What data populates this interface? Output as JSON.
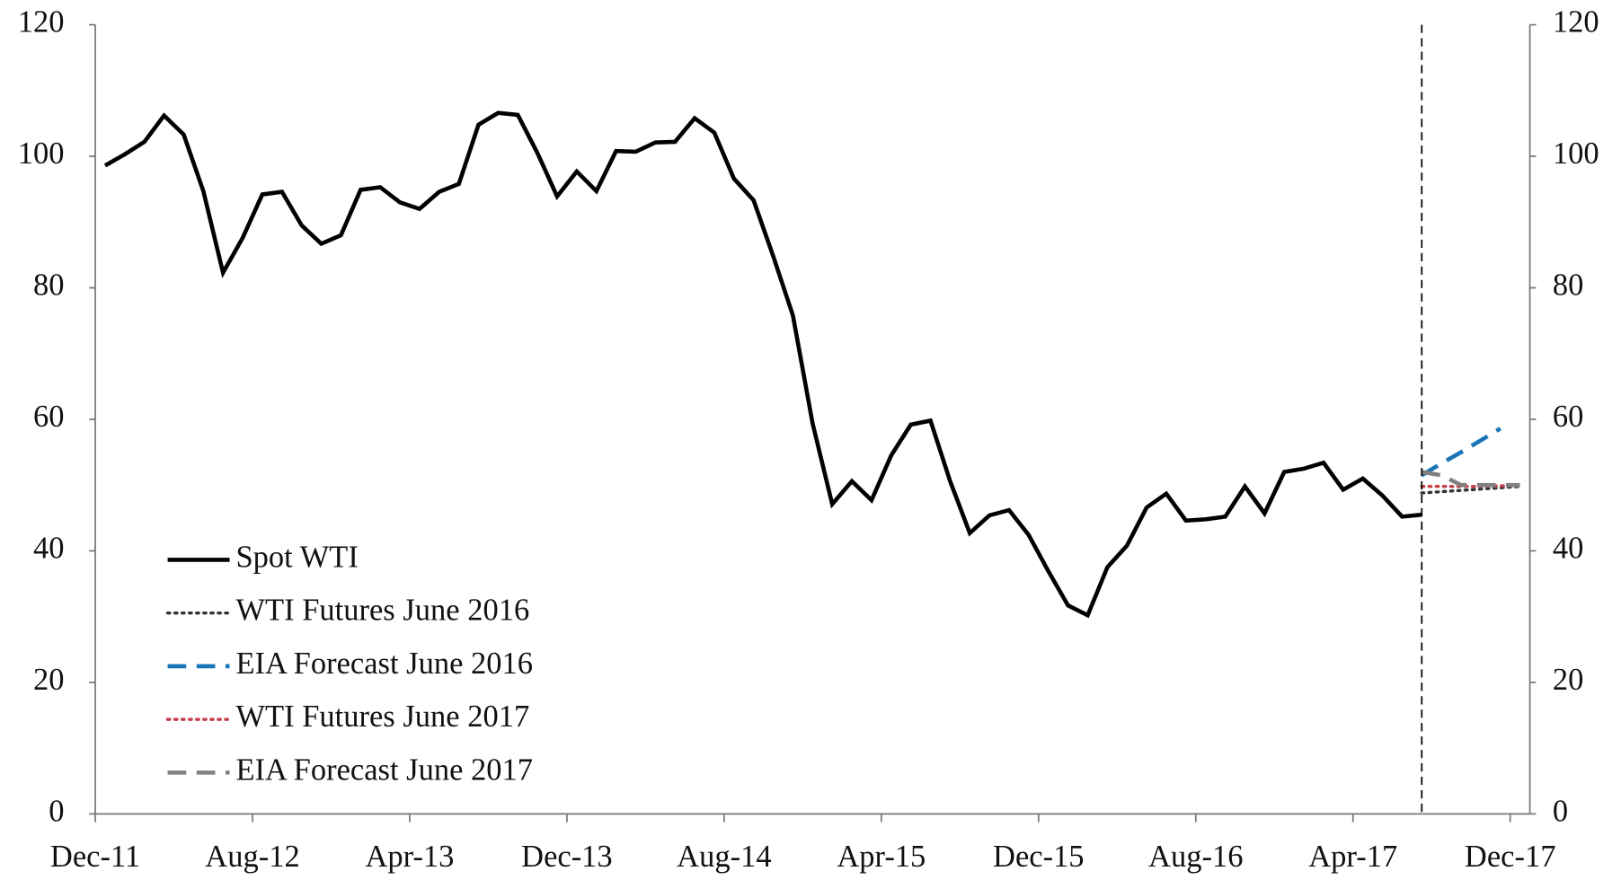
{
  "chart_data": {
    "type": "line",
    "categories": [
      "Dec-11",
      null,
      null,
      null,
      null,
      null,
      null,
      null,
      "Aug-12",
      null,
      null,
      null,
      null,
      null,
      null,
      null,
      "Apr-13",
      null,
      null,
      null,
      null,
      null,
      null,
      null,
      "Dec-13",
      null,
      null,
      null,
      null,
      null,
      null,
      null,
      "Aug-14",
      null,
      null,
      null,
      null,
      null,
      null,
      null,
      "Apr-15",
      null,
      null,
      null,
      null,
      null,
      null,
      null,
      "Dec-15",
      null,
      null,
      null,
      null,
      null,
      null,
      null,
      "Aug-16",
      null,
      null,
      null,
      null,
      null,
      null,
      null,
      "Apr-17",
      null,
      null,
      null,
      null,
      null,
      null,
      null,
      "Dec-17"
    ],
    "series": [
      {
        "name": "Spot WTI",
        "color": "#000000",
        "style": "solid",
        "values": [
          98.6,
          100.3,
          102.2,
          106.2,
          103.3,
          94.7,
          82.3,
          87.6,
          94.2,
          94.6,
          89.5,
          86.7,
          88.0,
          94.9,
          95.3,
          93.0,
          92.0,
          94.6,
          95.8,
          104.8,
          106.6,
          106.3,
          100.5,
          93.9,
          97.7,
          94.7,
          100.8,
          100.7,
          102.1,
          102.2,
          105.8,
          103.6,
          96.6,
          93.3,
          84.8,
          75.8,
          59.4,
          47.1,
          50.6,
          47.7,
          54.5,
          59.2,
          59.8,
          50.6,
          42.7,
          45.4,
          46.2,
          42.4,
          36.9,
          31.7,
          30.2,
          37.5,
          40.8,
          46.6,
          48.7,
          44.6,
          44.8,
          45.2,
          49.8,
          45.7,
          52.0,
          52.5,
          53.4,
          49.3,
          51.0,
          48.4,
          45.2,
          45.5,
          null,
          null,
          null,
          null,
          null
        ]
      },
      {
        "name": "WTI Futures June 2016",
        "color": "#333333",
        "style": "dotted",
        "values": [
          null,
          null,
          null,
          null,
          null,
          null,
          null,
          null,
          null,
          null,
          null,
          null,
          null,
          null,
          null,
          null,
          null,
          null,
          null,
          null,
          null,
          null,
          null,
          null,
          null,
          null,
          null,
          null,
          null,
          null,
          null,
          null,
          null,
          null,
          null,
          null,
          null,
          null,
          null,
          null,
          null,
          null,
          null,
          null,
          null,
          null,
          null,
          null,
          null,
          null,
          null,
          null,
          null,
          null,
          null,
          null,
          null,
          null,
          null,
          null,
          null,
          null,
          null,
          null,
          null,
          null,
          null,
          48.8,
          49.0,
          49.2,
          49.4,
          49.6,
          49.8
        ]
      },
      {
        "name": "EIA Forecast June 2016",
        "color": "#1a75b8",
        "style": "dashed",
        "values": [
          null,
          null,
          null,
          null,
          null,
          null,
          null,
          null,
          null,
          null,
          null,
          null,
          null,
          null,
          null,
          null,
          null,
          null,
          null,
          null,
          null,
          null,
          null,
          null,
          null,
          null,
          null,
          null,
          null,
          null,
          null,
          null,
          null,
          null,
          null,
          null,
          null,
          null,
          null,
          null,
          null,
          null,
          null,
          null,
          null,
          null,
          null,
          null,
          null,
          null,
          null,
          null,
          null,
          null,
          null,
          null,
          null,
          null,
          null,
          null,
          null,
          null,
          null,
          null,
          null,
          null,
          null,
          51.5,
          53.3,
          55.0,
          56.8,
          58.6,
          null
        ]
      },
      {
        "name": "WTI Futures June 2017",
        "color": "#c8404a",
        "style": "dotted",
        "values": [
          null,
          null,
          null,
          null,
          null,
          null,
          null,
          null,
          null,
          null,
          null,
          null,
          null,
          null,
          null,
          null,
          null,
          null,
          null,
          null,
          null,
          null,
          null,
          null,
          null,
          null,
          null,
          null,
          null,
          null,
          null,
          null,
          null,
          null,
          null,
          null,
          null,
          null,
          null,
          null,
          null,
          null,
          null,
          null,
          null,
          null,
          null,
          null,
          null,
          null,
          null,
          null,
          null,
          null,
          null,
          null,
          null,
          null,
          null,
          null,
          null,
          null,
          null,
          null,
          null,
          null,
          null,
          49.8,
          49.8,
          49.8,
          49.8,
          49.9,
          49.9
        ]
      },
      {
        "name": "EIA Forecast June 2017",
        "color": "#808080",
        "style": "dashed",
        "values": [
          null,
          null,
          null,
          null,
          null,
          null,
          null,
          null,
          null,
          null,
          null,
          null,
          null,
          null,
          null,
          null,
          null,
          null,
          null,
          null,
          null,
          null,
          null,
          null,
          null,
          null,
          null,
          null,
          null,
          null,
          null,
          null,
          null,
          null,
          null,
          null,
          null,
          null,
          null,
          null,
          null,
          null,
          null,
          null,
          null,
          null,
          null,
          null,
          null,
          null,
          null,
          null,
          null,
          null,
          null,
          null,
          null,
          null,
          null,
          null,
          null,
          null,
          null,
          null,
          null,
          null,
          null,
          52.0,
          51.5,
          50.0,
          50.0,
          50.0,
          50.0
        ]
      }
    ],
    "ylim": [
      0,
      120
    ],
    "yticks": [
      0,
      20,
      40,
      60,
      80,
      100,
      120
    ],
    "y2lim": [
      0,
      120
    ],
    "y2ticks": [
      0,
      20,
      40,
      60,
      80,
      100,
      120
    ],
    "grid": false,
    "legend": "lower left"
  }
}
